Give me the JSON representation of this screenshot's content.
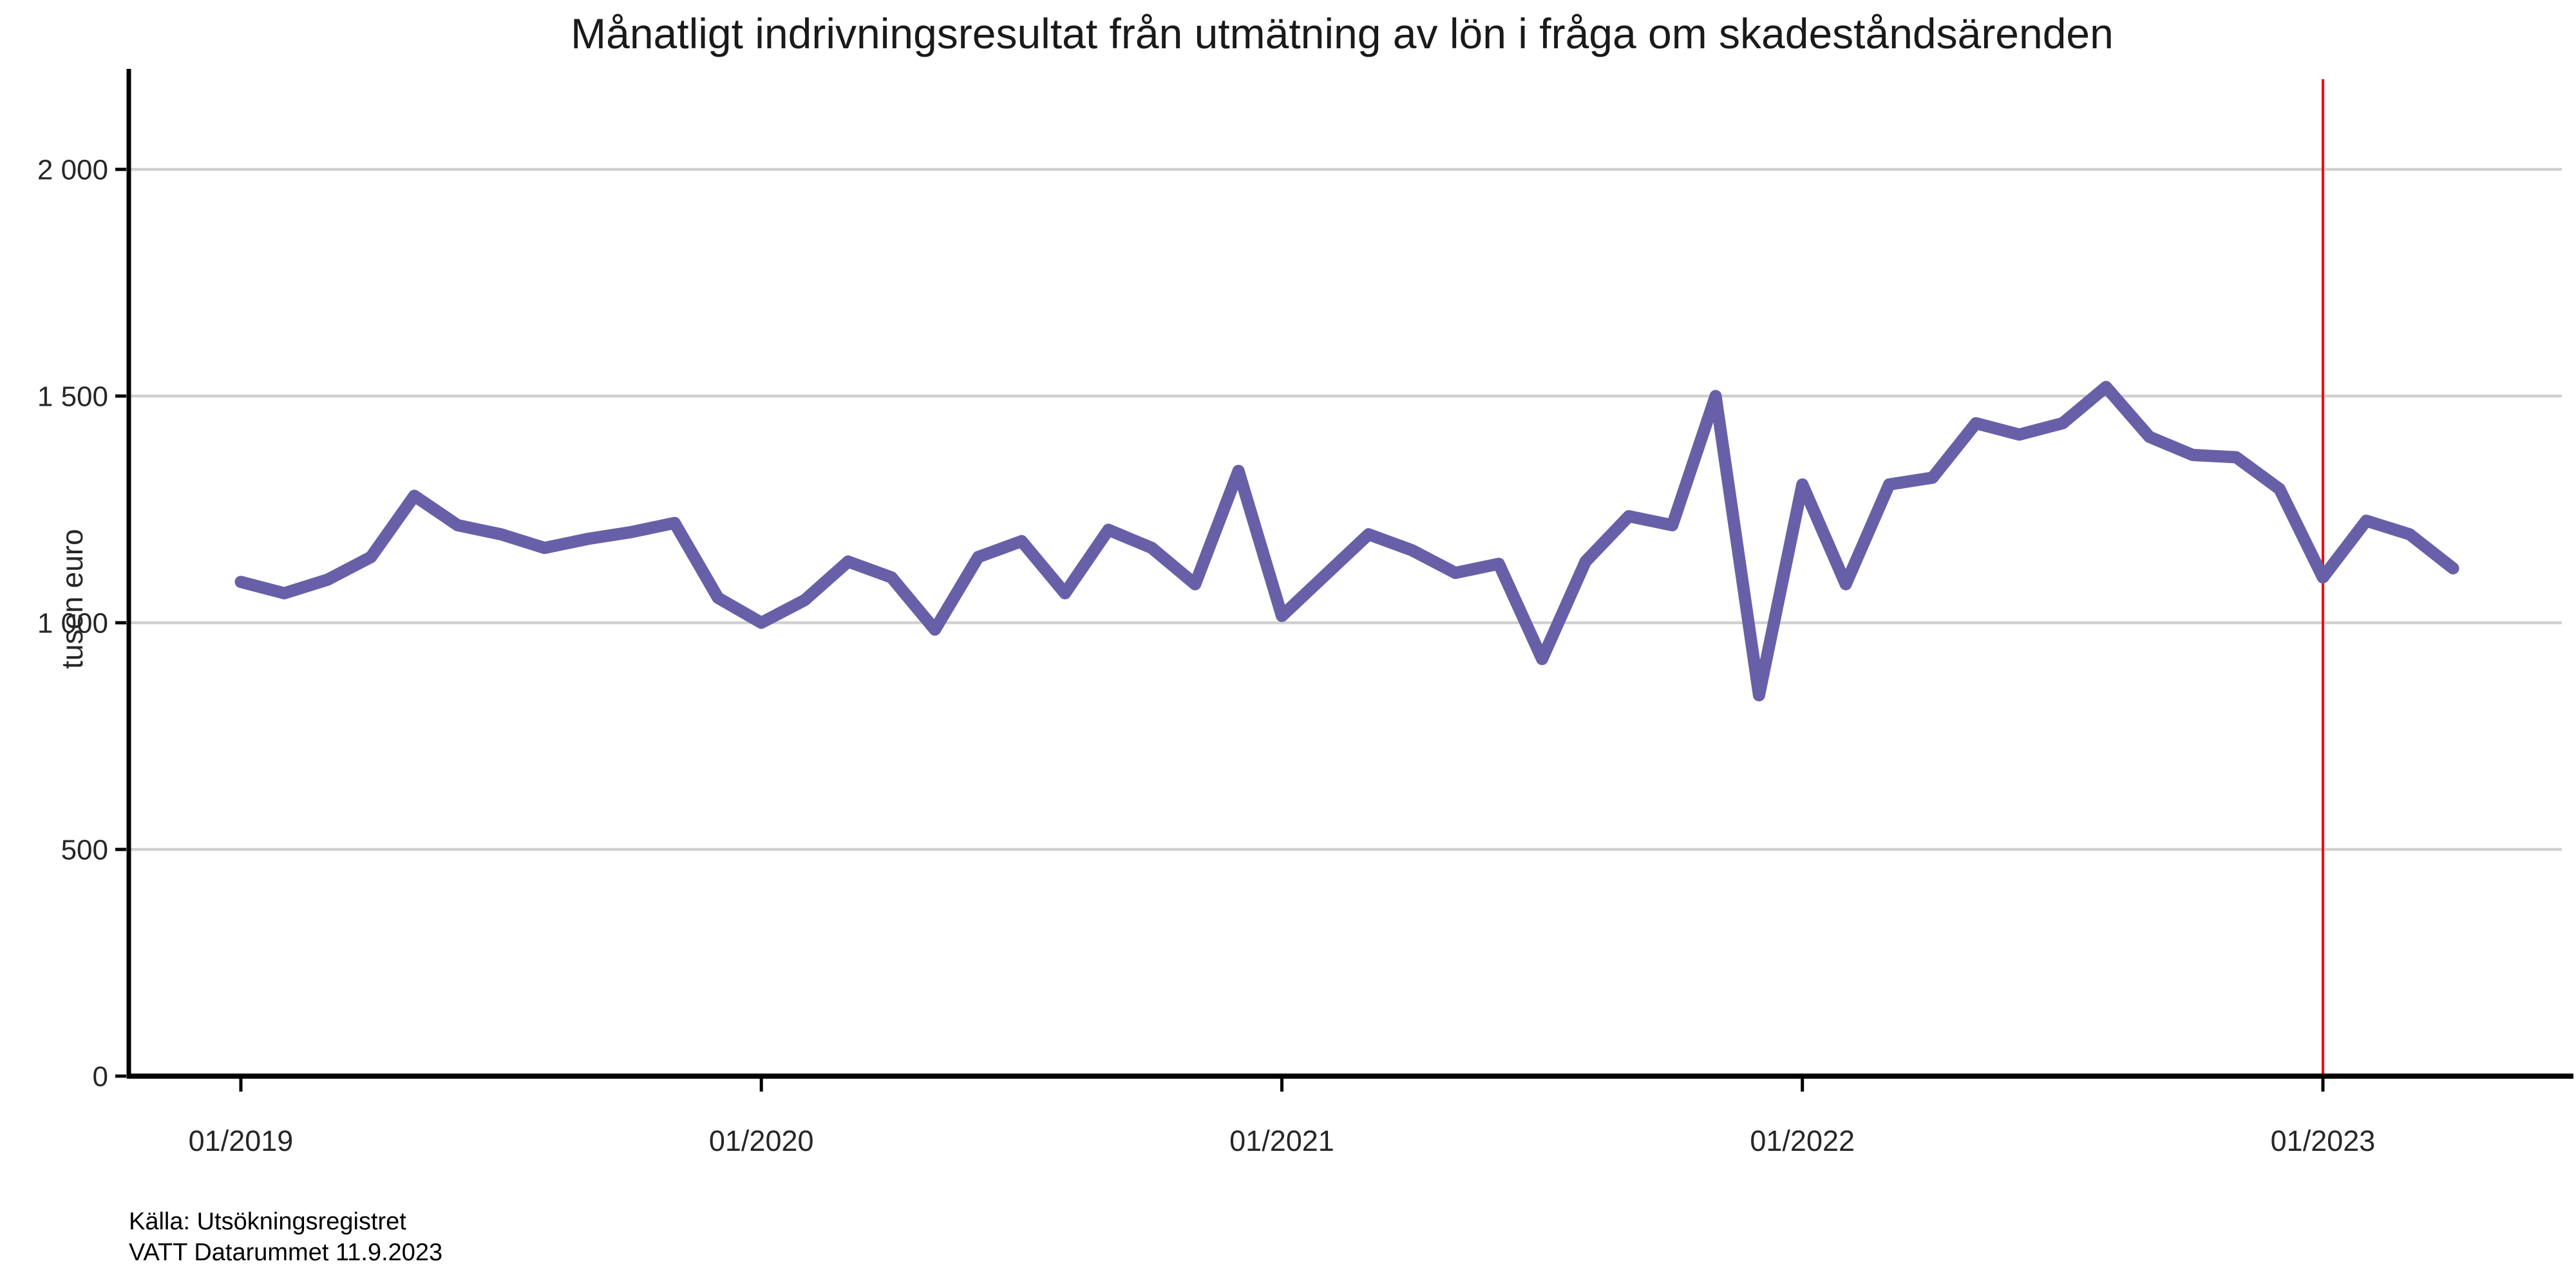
{
  "chart_data": {
    "type": "line",
    "title": "Månatligt indrivningsresultat från utmätning av lön i fråga om skadeståndsärenden",
    "xlabel": "",
    "ylabel": "tusen euro",
    "source_line1": "Källa: Utsökningsregistret",
    "source_line2": "VATT Datarummet 11.9.2023",
    "line_color": "#6760a8",
    "grid_color": "#d0d0d0",
    "axis_color": "#000000",
    "tick_label_color": "#262626",
    "ylim": [
      0,
      2200
    ],
    "grid": "horizontal",
    "legend_position": "none",
    "x": [
      "01/2019",
      "02/2019",
      "03/2019",
      "04/2019",
      "05/2019",
      "06/2019",
      "07/2019",
      "08/2019",
      "09/2019",
      "10/2019",
      "11/2019",
      "12/2019",
      "01/2020",
      "02/2020",
      "03/2020",
      "04/2020",
      "05/2020",
      "06/2020",
      "07/2020",
      "08/2020",
      "09/2020",
      "10/2020",
      "11/2020",
      "12/2020",
      "01/2021",
      "02/2021",
      "03/2021",
      "04/2021",
      "05/2021",
      "06/2021",
      "07/2021",
      "08/2021",
      "09/2021",
      "10/2021",
      "11/2021",
      "12/2021",
      "01/2022",
      "02/2022",
      "03/2022",
      "04/2022",
      "05/2022",
      "06/2022",
      "07/2022",
      "08/2022",
      "09/2022",
      "10/2022",
      "11/2022",
      "12/2022",
      "01/2023",
      "02/2023",
      "03/2023",
      "04/2023"
    ],
    "values": [
      1090,
      1065,
      1095,
      1145,
      1280,
      1215,
      1195,
      1165,
      1185,
      1200,
      1220,
      1055,
      1000,
      1050,
      1135,
      1100,
      985,
      1145,
      1180,
      1065,
      1205,
      1165,
      1085,
      1335,
      1015,
      1105,
      1195,
      1160,
      1110,
      1130,
      920,
      1135,
      1235,
      1215,
      1500,
      840,
      1305,
      1085,
      1305,
      1320,
      1440,
      1415,
      1440,
      1520,
      1410,
      1370,
      1365,
      1295,
      1100,
      1225,
      1195,
      1120
    ],
    "yticks": [
      {
        "value": 0,
        "label": "0"
      },
      {
        "value": 500,
        "label": "500"
      },
      {
        "value": 1000,
        "label": "1 000"
      },
      {
        "value": 1500,
        "label": "1 500"
      },
      {
        "value": 2000,
        "label": "2 000"
      }
    ],
    "xticks": [
      {
        "index": 0,
        "label": "01/2019"
      },
      {
        "index": 12,
        "label": "01/2020"
      },
      {
        "index": 24,
        "label": "01/2021"
      },
      {
        "index": 36,
        "label": "01/2022"
      },
      {
        "index": 48,
        "label": "01/2023"
      }
    ],
    "vline": {
      "index": 48,
      "at_label": "01/2023",
      "color": "#ff0000"
    }
  }
}
